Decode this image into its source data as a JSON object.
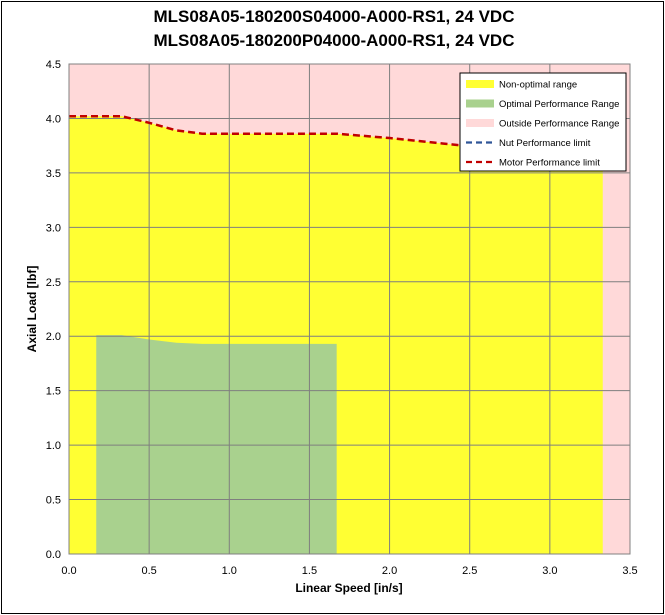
{
  "chart_data": {
    "type": "area",
    "title_line1": "MLS08A05-180200S04000-A000-RS1, 24 VDC",
    "title_line2": "MLS08A05-180200P04000-A000-RS1, 24 VDC",
    "xlabel": "Linear Speed [in/s]",
    "ylabel": "Axial Load [lbf]",
    "xlim": [
      0,
      3.5
    ],
    "ylim": [
      0,
      4.5
    ],
    "xticks": [
      0.0,
      0.5,
      1.0,
      1.5,
      2.0,
      2.5,
      3.0,
      3.5
    ],
    "yticks": [
      0.0,
      0.5,
      1.0,
      1.5,
      2.0,
      2.5,
      3.0,
      3.5,
      4.0,
      4.5
    ],
    "xtick_labels": [
      "0.0",
      "0.5",
      "1.0",
      "1.5",
      "2.0",
      "2.5",
      "3.0",
      "3.5"
    ],
    "ytick_labels": [
      "0.0",
      "0.5",
      "1.0",
      "1.5",
      "2.0",
      "2.5",
      "3.0",
      "3.5",
      "4.0",
      "4.5"
    ],
    "grid": true,
    "legend_position": "top-right",
    "background_color": "#FFD9D9",
    "series": [
      {
        "name": "Non-optimal range",
        "kind": "area",
        "color": "#FFFF33",
        "x": [
          0,
          0.33,
          0.5,
          0.67,
          0.83,
          1.0,
          1.33,
          1.67,
          2.0,
          2.33,
          2.67,
          3.0,
          3.33
        ],
        "y": [
          4.02,
          4.02,
          3.96,
          3.89,
          3.86,
          3.86,
          3.86,
          3.86,
          3.82,
          3.77,
          3.72,
          3.67,
          3.62
        ]
      },
      {
        "name": "Optimal Performance Range",
        "kind": "area",
        "color": "#A9D18E",
        "x": [
          0.17,
          0.33,
          0.5,
          0.67,
          0.83,
          1.0,
          1.33,
          1.67
        ],
        "y": [
          2.01,
          2.01,
          1.97,
          1.94,
          1.93,
          1.93,
          1.93,
          1.93
        ]
      },
      {
        "name": "Outside Performance Range",
        "kind": "swatch",
        "color": "#FFD9D9"
      },
      {
        "name": "Nut Performance limit",
        "kind": "dashed-line",
        "color": "#2F5597",
        "x": [],
        "y": []
      },
      {
        "name": "Motor Performance limit",
        "kind": "dashed-line",
        "color": "#C00000",
        "x": [
          0,
          0.33,
          0.5,
          0.67,
          0.83,
          1.0,
          1.33,
          1.67,
          2.0,
          2.33,
          2.67,
          3.0,
          3.33
        ],
        "y": [
          4.02,
          4.02,
          3.96,
          3.89,
          3.86,
          3.86,
          3.86,
          3.86,
          3.82,
          3.77,
          3.72,
          3.67,
          3.62
        ]
      }
    ]
  }
}
